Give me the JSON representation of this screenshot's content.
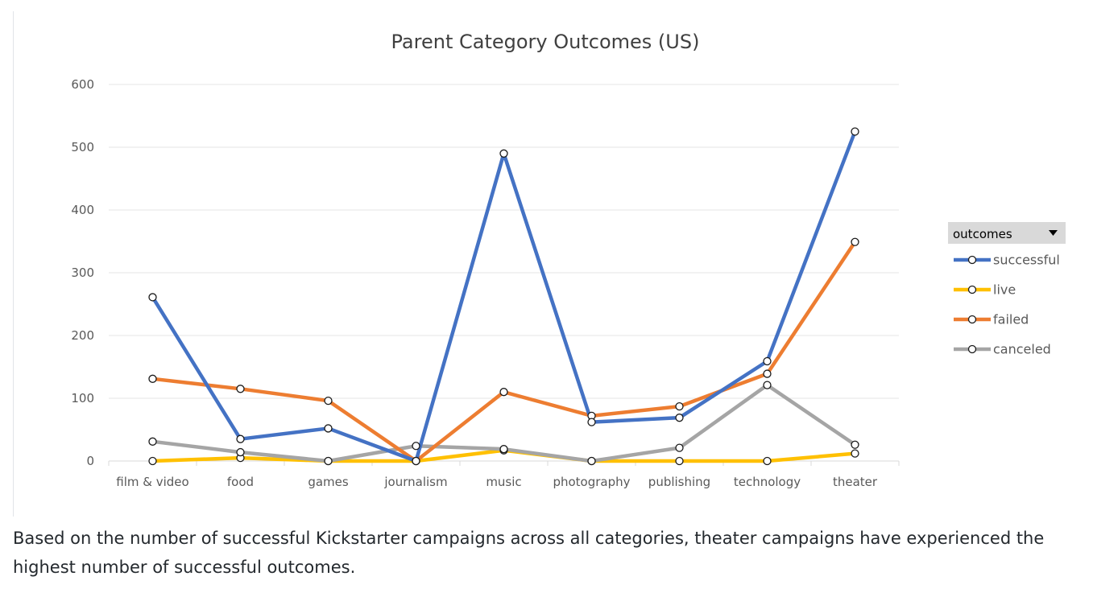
{
  "caption": "Based on the number of successful Kickstarter campaigns across all categories, theater campaigns have experienced the highest number of successful outcomes.",
  "legend": {
    "header": "outcomes",
    "dropdown_icon": "triangle-down-icon"
  },
  "chart_data": {
    "type": "line",
    "title": "Parent Category Outcomes (US)",
    "xlabel": "",
    "ylabel": "",
    "ylim": [
      0,
      600
    ],
    "yticks": [
      "0",
      "100",
      "200",
      "300",
      "400",
      "500",
      "600"
    ],
    "grid": true,
    "legend_position": "right",
    "categories": [
      "film & video",
      "food",
      "games",
      "journalism",
      "music",
      "photography",
      "publishing",
      "technology",
      "theater"
    ],
    "series": [
      {
        "name": "successful",
        "color": "#4472c4",
        "values": [
          261,
          35,
          52,
          0,
          490,
          62,
          69,
          159,
          525
        ]
      },
      {
        "name": "live",
        "color": "#ffc000",
        "values": [
          0,
          5,
          0,
          0,
          17,
          0,
          0,
          0,
          12
        ]
      },
      {
        "name": "failed",
        "color": "#ed7d31",
        "values": [
          131,
          115,
          96,
          0,
          110,
          72,
          87,
          139,
          349
        ]
      },
      {
        "name": "canceled",
        "color": "#a5a5a5",
        "values": [
          31,
          14,
          0,
          24,
          19,
          0,
          21,
          121,
          26
        ]
      }
    ]
  }
}
